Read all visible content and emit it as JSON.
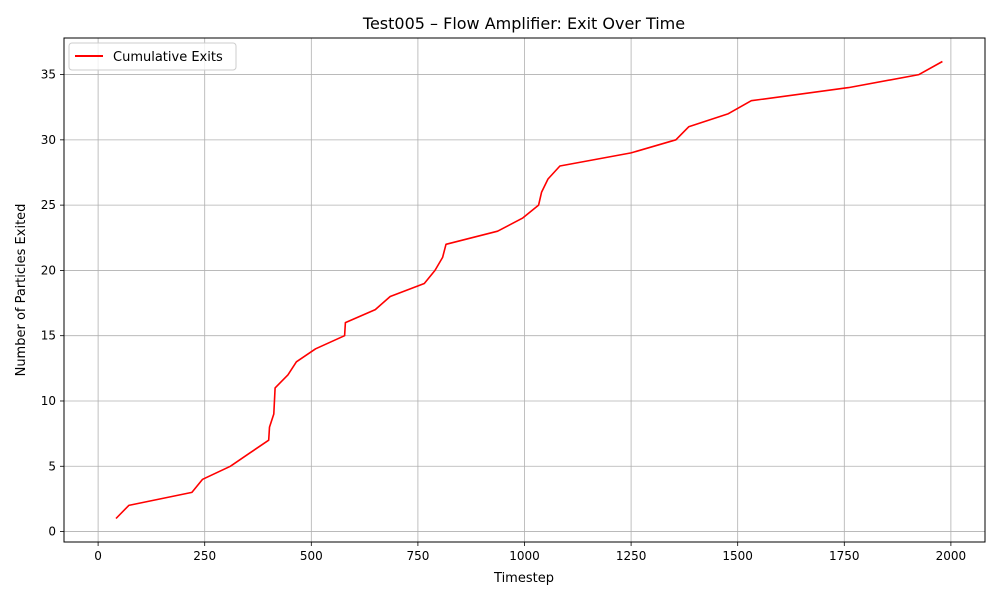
{
  "chart_data": {
    "type": "line",
    "title": "Test005 – Flow Amplifier: Exit Over Time",
    "xlabel": "Timestep",
    "ylabel": "Number of Particles Exited",
    "xlim": [
      -80,
      2080
    ],
    "ylim": [
      -0.8,
      37.8
    ],
    "xticks": [
      0,
      250,
      500,
      750,
      1000,
      1250,
      1500,
      1750,
      2000
    ],
    "yticks": [
      0,
      5,
      10,
      15,
      20,
      25,
      30,
      35
    ],
    "grid": true,
    "legend_position": "top-left",
    "series": [
      {
        "name": "Cumulative Exits",
        "color": "#ff0000",
        "x": [
          42,
          72,
          220,
          245,
          310,
          355,
          400,
          402,
          412,
          415,
          445,
          465,
          510,
          578,
          580,
          650,
          685,
          765,
          790,
          808,
          816,
          937,
          995,
          1033,
          1040,
          1055,
          1083,
          1250,
          1355,
          1385,
          1478,
          1532,
          1760,
          1925,
          1980
        ],
        "y": [
          1,
          2,
          3,
          4,
          5,
          6,
          7,
          8,
          9,
          11,
          12,
          13,
          14,
          15,
          16,
          17,
          18,
          19,
          20,
          21,
          22,
          23,
          24,
          25,
          26,
          27,
          28,
          29,
          30,
          31,
          32,
          33,
          34,
          35,
          36
        ]
      }
    ]
  }
}
